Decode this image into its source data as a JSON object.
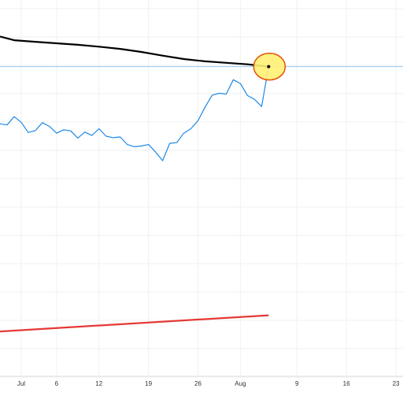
{
  "chart_data": {
    "type": "line",
    "title": "",
    "xlabel": "",
    "ylabel": "",
    "grid": true,
    "x_ticks": [
      {
        "label": "Jul",
        "day": 1
      },
      {
        "label": "6",
        "day": 6
      },
      {
        "label": "12",
        "day": 12
      },
      {
        "label": "19",
        "day": 19
      },
      {
        "label": "26",
        "day": 26
      },
      {
        "label": "Aug",
        "day": 32
      },
      {
        "label": "9",
        "day": 40
      },
      {
        "label": "16",
        "day": 47
      },
      {
        "label": "23",
        "day": 54
      }
    ],
    "xlim": [
      -2,
      55
    ],
    "ylim": [
      0,
      100
    ],
    "series": [
      {
        "color": "#000000",
        "x": [
          -2,
          0,
          3,
          6,
          9,
          12,
          15,
          18,
          21,
          24,
          27,
          30,
          33,
          36
        ],
        "values": [
          90.3,
          89.3,
          88.9,
          88.5,
          88.1,
          87.6,
          87.0,
          86.2,
          85.2,
          84.3,
          83.7,
          83.3,
          82.9,
          82.3
        ]
      },
      {
        "color": "#1e88e5",
        "x": [
          -2,
          -1,
          0,
          1,
          2,
          3,
          4,
          5,
          6,
          7,
          8,
          9,
          10,
          11,
          12,
          13,
          14,
          15,
          16,
          17,
          18,
          19,
          20,
          21,
          22,
          23,
          24,
          25,
          26,
          27,
          28,
          29,
          30,
          31,
          32,
          33,
          34,
          35,
          36
        ],
        "values": [
          67.1,
          66.8,
          69.0,
          67.5,
          64.8,
          65.3,
          67.4,
          66.4,
          64.6,
          65.5,
          65.2,
          63.3,
          64.9,
          64.0,
          65.8,
          63.8,
          63.4,
          63.6,
          61.6,
          61.0,
          61.2,
          61.6,
          59.6,
          57.3,
          61.9,
          62.1,
          64.6,
          65.8,
          67.9,
          71.5,
          74.7,
          75.2,
          75.0,
          78.8,
          77.8,
          74.6,
          73.6,
          71.7,
          82.3
        ]
      },
      {
        "color": "#e53935",
        "x": [
          -2,
          36
        ],
        "values": [
          11.9,
          16.2
        ]
      }
    ],
    "highlight_point": {
      "x": 36,
      "y": 82.3,
      "color": "#fff176",
      "border": "#e65100"
    },
    "reference_line": {
      "y": 82.3,
      "color": "#90caf9"
    }
  }
}
